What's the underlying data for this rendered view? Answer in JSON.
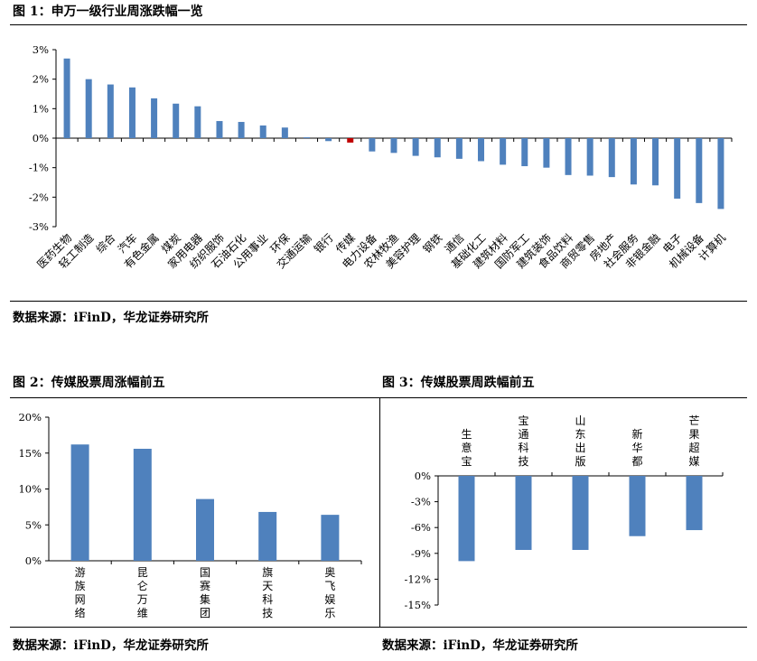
{
  "figures": [
    {
      "title": "图 1：申万一级行业周涨跌幅一览",
      "source": "数据来源：iFinD，华龙证券研究所"
    },
    {
      "title": "图 2：传媒股票周涨幅前五",
      "source": "数据来源：iFinD，华龙证券研究所"
    },
    {
      "title": "图 3：传媒股票周跌幅前五",
      "source": "数据来源：iFinD，华龙证券研究所"
    }
  ],
  "chart_data": [
    {
      "type": "bar",
      "categories": [
        "医药生物",
        "轻工制造",
        "综合",
        "汽车",
        "有色金属",
        "煤炭",
        "家用电器",
        "纺织服饰",
        "石油石化",
        "公用事业",
        "环保",
        "交通运输",
        "银行",
        "传媒",
        "电力设备",
        "农林牧渔",
        "美容护理",
        "钢铁",
        "通信",
        "基础化工",
        "建筑材料",
        "国防军工",
        "建筑装饰",
        "食品饮料",
        "商贸零售",
        "房地产",
        "社会服务",
        "非银金融",
        "电子",
        "机械设备",
        "计算机"
      ],
      "values": [
        2.7,
        2.0,
        1.82,
        1.72,
        1.35,
        1.17,
        1.08,
        0.58,
        0.55,
        0.43,
        0.36,
        0.03,
        -0.1,
        -0.15,
        -0.45,
        -0.5,
        -0.6,
        -0.65,
        -0.7,
        -0.78,
        -0.9,
        -0.95,
        -1.0,
        -1.25,
        -1.27,
        -1.32,
        -1.57,
        -1.6,
        -2.05,
        -2.2,
        -2.4
      ],
      "highlight_category": "传媒",
      "colors": {
        "bar": "#4f81bd",
        "highlight": "#c00000"
      },
      "ylim": [
        -3,
        3
      ],
      "yticks": [
        "-3%",
        "-2%",
        "-1%",
        "0%",
        "1%",
        "2%",
        "3%"
      ],
      "ytick_values": [
        -3,
        -2,
        -1,
        0,
        1,
        2,
        3
      ],
      "grid": false
    },
    {
      "type": "bar",
      "categories": [
        "游族网络",
        "昆仑万维",
        "国赛集团",
        "旗天科技",
        "奥飞娱乐"
      ],
      "values": [
        16.2,
        15.6,
        8.6,
        6.8,
        6.4
      ],
      "colors": {
        "bar": "#4f81bd"
      },
      "ylim": [
        0,
        20
      ],
      "yticks": [
        "0%",
        "5%",
        "10%",
        "15%",
        "20%"
      ],
      "ytick_values": [
        0,
        5,
        10,
        15,
        20
      ],
      "grid": false
    },
    {
      "type": "bar",
      "categories": [
        "生意宝",
        "宝通科技",
        "山东出版",
        "新华都",
        "芒果超媒"
      ],
      "values": [
        -9.9,
        -8.6,
        -8.6,
        -7.0,
        -6.3
      ],
      "colors": {
        "bar": "#4f81bd"
      },
      "ylim": [
        -15,
        0
      ],
      "yticks": [
        "-15%",
        "-12%",
        "-9%",
        "-6%",
        "-3%",
        "0%"
      ],
      "ytick_values": [
        -15,
        -12,
        -9,
        -6,
        -3,
        0
      ],
      "grid": false
    }
  ]
}
